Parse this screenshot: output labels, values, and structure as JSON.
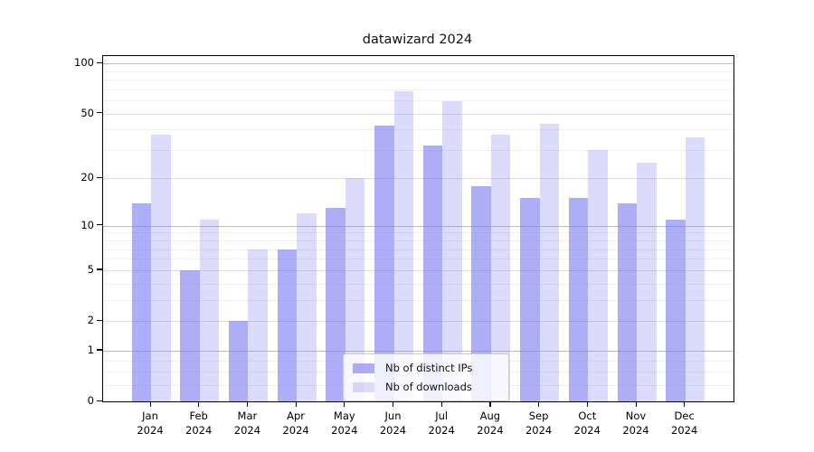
{
  "title": "datawizard 2024",
  "legend": {
    "items": [
      {
        "label": "Nb of distinct IPs"
      },
      {
        "label": "Nb of downloads"
      }
    ]
  },
  "colors": {
    "distinct_ips_bar": "rgba(124,124,240,0.62)",
    "downloads_bar": "rgba(124,124,240,0.28)",
    "grid_decade": "#bdbdbd",
    "grid_labeled": "#dedede",
    "grid_minor": "#efefef"
  },
  "chart_data": {
    "type": "bar",
    "title": "datawizard 2024",
    "categories": [
      "Jan 2024",
      "Feb 2024",
      "Mar 2024",
      "Apr 2024",
      "May 2024",
      "Jun 2024",
      "Jul 2024",
      "Aug 2024",
      "Sep 2024",
      "Oct 2024",
      "Nov 2024",
      "Dec 2024"
    ],
    "series": [
      {
        "name": "Nb of distinct IPs",
        "color": "rgba(124,124,240,0.62)",
        "values": [
          14,
          5,
          2,
          7,
          13,
          42,
          32,
          18,
          15,
          15,
          14,
          11
        ]
      },
      {
        "name": "Nb of downloads",
        "color": "rgba(124,124,240,0.28)",
        "values": [
          37,
          11,
          7,
          12,
          20,
          68,
          59,
          37,
          43,
          30,
          25,
          36
        ]
      }
    ],
    "xlabel": "",
    "ylabel": "",
    "yscale": "log1p",
    "ylim": [
      0,
      111
    ],
    "yticks": [
      0,
      1,
      2,
      5,
      10,
      20,
      50,
      100
    ],
    "yticks_decade": [
      1,
      10,
      100
    ],
    "yticks_minor": [
      0.25,
      0.5,
      0.75,
      3,
      4,
      6,
      7,
      8,
      9,
      30,
      40,
      60,
      70,
      80,
      90
    ],
    "grid": true,
    "legend_position": "lower center"
  }
}
